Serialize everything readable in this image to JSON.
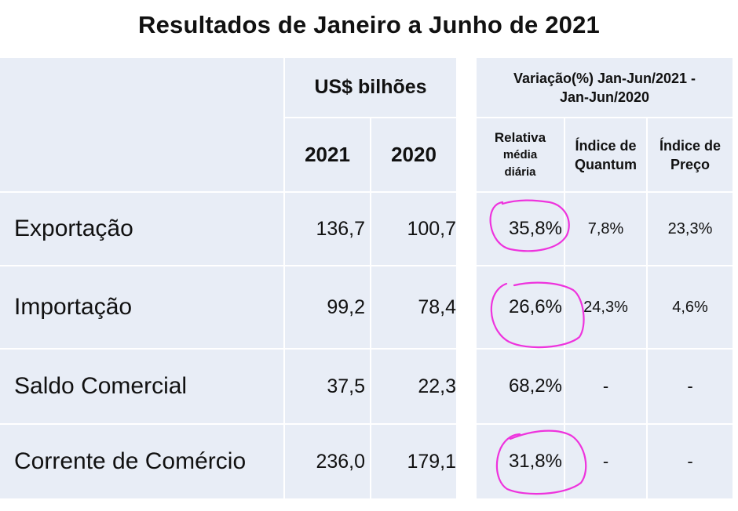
{
  "title": "Resultados de Janeiro a Junho de 2021",
  "header": {
    "currency": "US$ bilhões",
    "variation": "Variação(%) Jan-Jun/2021 - Jan-Jun/2020",
    "year_2021": "2021",
    "year_2020": "2020",
    "relativa_line1": "Relativa",
    "relativa_line2": "média",
    "relativa_line3": "diária",
    "quantum_line1": "Índice de",
    "quantum_line2": "Quantum",
    "preco_line1": "Índice de",
    "preco_line2": "Preço"
  },
  "rows": [
    {
      "label": "Exportação",
      "v2021": "136,7",
      "v2020": "100,7",
      "relativa": "35,8%",
      "quantum": "7,8%",
      "preco": "23,3%"
    },
    {
      "label": "Importação",
      "v2021": "99,2",
      "v2020": "78,4",
      "relativa": "26,6%",
      "quantum": "24,3%",
      "preco": "4,6%"
    },
    {
      "label": "Saldo Comercial",
      "v2021": "37,5",
      "v2020": "22,3",
      "relativa": "68,2%",
      "quantum": "-",
      "preco": "-"
    },
    {
      "label": "Corrente de Comércio",
      "v2021": "236,0",
      "v2020": "179,1",
      "relativa": "31,8%",
      "quantum": "-",
      "preco": "-"
    }
  ],
  "colors": {
    "cell_bg": "#e8edf6",
    "annotation": "#ee33dd"
  }
}
